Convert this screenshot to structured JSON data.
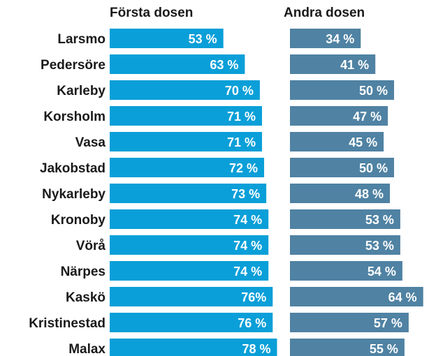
{
  "chart_data": {
    "type": "bar",
    "title": "",
    "categories": [
      "Larsmo",
      "Pedersöre",
      "Karleby",
      "Korsholm",
      "Vasa",
      "Jakobstad",
      "Nykarleby",
      "Kronoby",
      "Vörå",
      "Närpes",
      "Kaskö",
      "Kristinestad",
      "Malax"
    ],
    "series": [
      {
        "name": "Första dosen",
        "values": [
          53,
          63,
          70,
          71,
          71,
          72,
          73,
          74,
          74,
          74,
          76,
          76,
          78
        ],
        "labels": [
          "53 %",
          "63 %",
          "70 %",
          "71 %",
          "71 %",
          "72 %",
          "73 %",
          "74 %",
          "74 %",
          "74 %",
          "76%",
          "76 %",
          "78 %"
        ],
        "color": "#0a9fd8"
      },
      {
        "name": "Andra dosen",
        "values": [
          34,
          41,
          50,
          47,
          45,
          50,
          48,
          53,
          53,
          54,
          64,
          57,
          55
        ],
        "labels": [
          "34 %",
          "41 %",
          "50 %",
          "47 %",
          "45 %",
          "50 %",
          "48 %",
          "53 %",
          "53 %",
          "54 %",
          "64 %",
          "57 %",
          "55 %"
        ],
        "color": "#4f82a3"
      }
    ],
    "xlim": [
      0,
      100
    ]
  }
}
